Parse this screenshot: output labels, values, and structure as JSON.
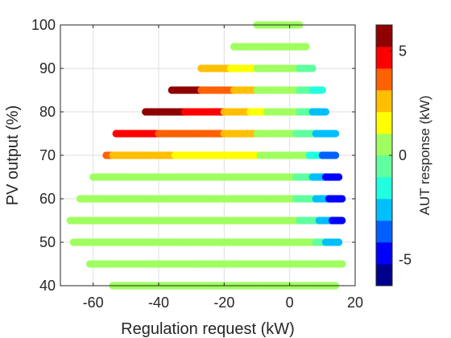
{
  "chart_data": {
    "type": "scatter",
    "xlabel": "Regulation request (kW)",
    "ylabel": "PV output (%)",
    "colorbar_label": "AUT response (kW)",
    "xlim": [
      -70,
      20
    ],
    "ylim": [
      40,
      100
    ],
    "xticks": [
      -60,
      -40,
      -20,
      0,
      20
    ],
    "yticks": [
      40,
      50,
      60,
      70,
      80,
      90,
      100
    ],
    "xtick_labels": [
      "-60",
      "-40",
      "-20",
      "0",
      "20"
    ],
    "ytick_labels": [
      "40",
      "50",
      "60",
      "70",
      "80",
      "90",
      "100"
    ],
    "clim": [
      -6.25,
      6.25
    ],
    "colorbar_ticks": [
      -5,
      0,
      5
    ],
    "colorbar_tick_labels": [
      "-5",
      "0",
      "5"
    ],
    "colormap": [
      "#00008f",
      "#0000ff",
      "#0060ff",
      "#00bfff",
      "#20ffdf",
      "#60ff9f",
      "#a0ff60",
      "#ffff00",
      "#ffbf00",
      "#ff6000",
      "#ff0000",
      "#8f0000"
    ],
    "grid": true,
    "series": [
      {
        "y": 100,
        "segments": [
          {
            "x0": -10,
            "x1": 3,
            "c": 0
          }
        ]
      },
      {
        "y": 95,
        "segments": [
          {
            "x0": -17,
            "x1": -9,
            "c": 1
          },
          {
            "x0": -9,
            "x1": 5,
            "c": 0
          }
        ]
      },
      {
        "y": 90,
        "segments": [
          {
            "x0": -27,
            "x1": -18,
            "c": 3
          },
          {
            "x0": -18,
            "x1": -10,
            "c": 2
          },
          {
            "x0": -10,
            "x1": 3,
            "c": 0
          },
          {
            "x0": 3,
            "x1": 7,
            "c": -1
          }
        ]
      },
      {
        "y": 85,
        "segments": [
          {
            "x0": -36,
            "x1": -27,
            "c": 6
          },
          {
            "x0": -27,
            "x1": -17,
            "c": 4
          },
          {
            "x0": -17,
            "x1": -10,
            "c": 3
          },
          {
            "x0": -10,
            "x1": -4,
            "c": 1
          },
          {
            "x0": -4,
            "x1": 3,
            "c": 0
          },
          {
            "x0": 3,
            "x1": 7,
            "c": -1
          },
          {
            "x0": 7,
            "x1": 10,
            "c": -2
          }
        ]
      },
      {
        "y": 80,
        "segments": [
          {
            "x0": -44,
            "x1": -32,
            "c": 6
          },
          {
            "x0": -32,
            "x1": -20,
            "c": 5
          },
          {
            "x0": -20,
            "x1": -12,
            "c": 3
          },
          {
            "x0": -12,
            "x1": -7,
            "c": 2
          },
          {
            "x0": -7,
            "x1": 0,
            "c": 1
          },
          {
            "x0": 0,
            "x1": 3,
            "c": 0
          },
          {
            "x0": 3,
            "x1": 7,
            "c": -1
          },
          {
            "x0": 7,
            "x1": 11,
            "c": -3
          }
        ]
      },
      {
        "y": 75,
        "segments": [
          {
            "x0": -53,
            "x1": -40,
            "c": 5
          },
          {
            "x0": -40,
            "x1": -20,
            "c": 4
          },
          {
            "x0": -20,
            "x1": -10,
            "c": 3
          },
          {
            "x0": -10,
            "x1": -2,
            "c": 1
          },
          {
            "x0": -2,
            "x1": 2,
            "c": 0
          },
          {
            "x0": 2,
            "x1": 8,
            "c": -1
          },
          {
            "x0": 8,
            "x1": 14,
            "c": -3
          }
        ]
      },
      {
        "y": 70,
        "segments": [
          {
            "x0": -56,
            "x1": -54,
            "c": 4
          },
          {
            "x0": -54,
            "x1": -35,
            "c": 3
          },
          {
            "x0": -35,
            "x1": -9,
            "c": 2
          },
          {
            "x0": -9,
            "x1": 2,
            "c": 1
          },
          {
            "x0": 2,
            "x1": 6,
            "c": 0
          },
          {
            "x0": 6,
            "x1": 10,
            "c": -2
          },
          {
            "x0": 10,
            "x1": 14,
            "c": -4
          }
        ]
      },
      {
        "y": 65,
        "segments": [
          {
            "x0": -60,
            "x1": -5,
            "c": 1
          },
          {
            "x0": -5,
            "x1": 2,
            "c": 0
          },
          {
            "x0": 2,
            "x1": 7,
            "c": -1
          },
          {
            "x0": 7,
            "x1": 11,
            "c": -3
          },
          {
            "x0": 11,
            "x1": 15,
            "c": -5
          }
        ]
      },
      {
        "y": 60,
        "segments": [
          {
            "x0": -64,
            "x1": -35,
            "c": 1
          },
          {
            "x0": -35,
            "x1": 2,
            "c": 0
          },
          {
            "x0": 2,
            "x1": 8,
            "c": -1
          },
          {
            "x0": 8,
            "x1": 12,
            "c": -3
          },
          {
            "x0": 12,
            "x1": 16,
            "c": -5
          }
        ]
      },
      {
        "y": 55,
        "segments": [
          {
            "x0": -67,
            "x1": 3,
            "c": 0
          },
          {
            "x0": 3,
            "x1": 9,
            "c": -1
          },
          {
            "x0": 9,
            "x1": 13,
            "c": -3
          },
          {
            "x0": 13,
            "x1": 16,
            "c": -5
          }
        ]
      },
      {
        "y": 50,
        "segments": [
          {
            "x0": -66,
            "x1": 8,
            "c": 0
          },
          {
            "x0": 8,
            "x1": 11,
            "c": -1
          },
          {
            "x0": 11,
            "x1": 15,
            "c": -3
          }
        ]
      },
      {
        "y": 45,
        "segments": [
          {
            "x0": -61,
            "x1": 16,
            "c": 0
          }
        ]
      },
      {
        "y": 40,
        "segments": [
          {
            "x0": -54,
            "x1": 14,
            "c": 0
          }
        ]
      }
    ]
  }
}
